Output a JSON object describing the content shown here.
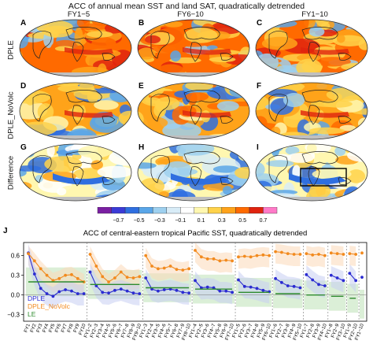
{
  "figure": {
    "title": "ACC of annual mean SST and land SAT, quadratically detrended",
    "columns": [
      "FY1−5",
      "FY6−10",
      "FY1−10"
    ],
    "rows": [
      "DPLE",
      "DPLE_NoVolc",
      "Difference"
    ],
    "panel_letters": [
      [
        "A",
        "B",
        "C"
      ],
      [
        "D",
        "E",
        "F"
      ],
      [
        "G",
        "H",
        "I"
      ]
    ],
    "colorbar": {
      "ticks": [
        "−0.7",
        "−0.5",
        "−0.3",
        "−0.1",
        "0.1",
        "0.3",
        "0.5",
        "0.7"
      ],
      "colors": [
        "#7a1fa2",
        "#3b3bd6",
        "#2f6fe0",
        "#5aa6e8",
        "#9ed0ef",
        "#d8ecf7",
        "#ffffff",
        "#fff7b0",
        "#ffd24a",
        "#ffa31a",
        "#ff6a00",
        "#e0230e",
        "#ff7ac8"
      ]
    }
  },
  "chart_data": {
    "type": "line",
    "panel_letter": "J",
    "title": "ACC of central-eastern tropical Pacific SST, quadratically detrended",
    "ylim": [
      -0.4,
      0.8
    ],
    "yticks": [
      "0.6",
      "0.3",
      "0.0",
      "−0.3"
    ],
    "categories": [
      "FY1",
      "FY2",
      "FY3",
      "FY4",
      "FY5",
      "FY6",
      "FY7",
      "FY8",
      "FY9",
      "FY10",
      "FY1−2",
      "FY2−3",
      "FY3−4",
      "FY4−5",
      "FY5−6",
      "FY6−7",
      "FY7−8",
      "FY8−9",
      "FY9−10",
      "FY1−3",
      "FY2−4",
      "FY3−5",
      "FY4−6",
      "FY5−7",
      "FY6−8",
      "FY7−9",
      "FY8−10",
      "FY1−4",
      "FY2−5",
      "FY3−6",
      "FY4−7",
      "FY5−8",
      "FY6−9",
      "FY7−10",
      "FY1−5",
      "FY2−6",
      "FY3−7",
      "FY4−8",
      "FY5−9",
      "FY6−10",
      "FY1−6",
      "FY2−7",
      "FY3−8",
      "FY4−9",
      "FY5−10",
      "FY1−7",
      "FY2−8",
      "FY3−9",
      "FY4−10",
      "FY1−8",
      "FY2−9",
      "FY3−10",
      "FY1−9",
      "FY2−10",
      "FY1−10"
    ],
    "groups": [
      10,
      9,
      8,
      7,
      6,
      5,
      4,
      3,
      2,
      1
    ],
    "series": [
      {
        "name": "DPLE",
        "color": "#2b2bd1",
        "values": [
          0.64,
          0.32,
          0.1,
          0.02,
          -0.02,
          0.05,
          0.08,
          0.06,
          0.02,
          0.02,
          0.35,
          0.14,
          0.04,
          0.03,
          0.07,
          0.09,
          0.06,
          0.03,
          0.02,
          0.26,
          0.09,
          0.06,
          0.08,
          0.09,
          0.07,
          0.04,
          0.03,
          0.22,
          0.11,
          0.12,
          0.11,
          0.06,
          0.06,
          0.04,
          0.23,
          0.13,
          0.12,
          0.1,
          0.07,
          0.05,
          0.25,
          0.19,
          0.14,
          0.13,
          0.11,
          0.31,
          0.23,
          0.16,
          0.14,
          0.3,
          0.26,
          0.22,
          0.33,
          0.22,
          0.27
        ]
      },
      {
        "name": "DPLE_NoVolc",
        "color": "#f28a1e",
        "values": [
          0.63,
          0.52,
          0.4,
          0.3,
          0.22,
          0.25,
          0.3,
          0.31,
          0.25,
          0.2,
          0.62,
          0.44,
          0.28,
          0.2,
          0.26,
          0.35,
          0.27,
          0.26,
          0.28,
          0.6,
          0.44,
          0.4,
          0.41,
          0.44,
          0.39,
          0.38,
          0.4,
          0.68,
          0.58,
          0.55,
          0.55,
          0.52,
          0.53,
          0.52,
          0.58,
          0.59,
          0.58,
          0.6,
          0.61,
          0.6,
          0.66,
          0.65,
          0.63,
          0.62,
          0.62,
          0.63,
          0.61,
          0.62,
          0.6,
          0.64,
          0.63,
          0.62,
          0.63,
          0.62,
          0.64
        ]
      },
      {
        "name": "LE",
        "color": "#2e8b2e",
        "values": [
          0.2,
          0.2,
          0.2,
          0.2,
          0.2,
          0.2,
          0.2,
          0.2,
          0.2,
          0.2,
          0.16,
          0.16,
          0.16,
          0.16,
          0.16,
          0.16,
          0.16,
          0.16,
          0.16,
          0.11,
          0.11,
          0.11,
          0.11,
          0.11,
          0.11,
          0.11,
          0.11,
          0.09,
          0.09,
          0.09,
          0.09,
          0.09,
          0.09,
          0.09,
          0.04,
          0.04,
          0.04,
          0.04,
          0.04,
          0.04,
          0.02,
          0.02,
          0.02,
          0.02,
          0.02,
          0.0,
          0.0,
          0.0,
          0.0,
          -0.02,
          -0.02,
          -0.02,
          -0.05,
          -0.05,
          -0.14
        ]
      }
    ],
    "legend": {
      "placement": "bottom-left"
    }
  }
}
